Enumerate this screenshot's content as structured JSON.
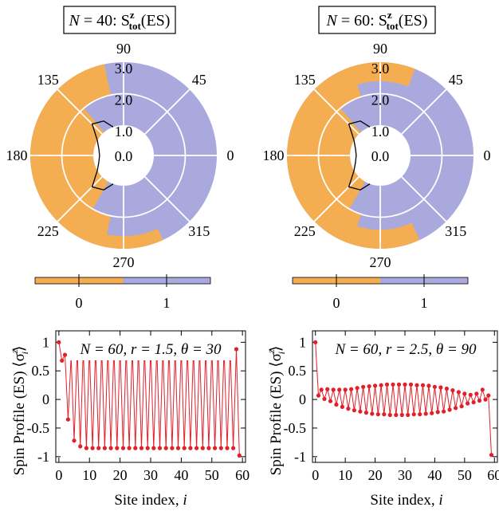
{
  "colors": {
    "phase0": "#f4ad50",
    "phase1": "#a9a9de",
    "curve": "#000000",
    "series": "#e1202a"
  },
  "polar_panels": [
    {
      "title_N": "40",
      "title_var": "N",
      "title_S": "S",
      "title_sup": "z",
      "title_sub": "tot",
      "title_tail": "(ES)",
      "radial_ticks": [
        "0.0",
        "1.0",
        "2.0",
        "3.0"
      ],
      "angle_labels": [
        "0",
        "45",
        "90",
        "135",
        "180",
        "225",
        "270",
        "315"
      ],
      "colorbar_ticks": [
        "0",
        "1"
      ]
    },
    {
      "title_N": "60",
      "title_var": "N",
      "title_S": "S",
      "title_sup": "z",
      "title_sub": "tot",
      "title_tail": "(ES)",
      "radial_ticks": [
        "0.0",
        "1.0",
        "2.0",
        "3.0"
      ],
      "angle_labels": [
        "0",
        "45",
        "90",
        "135",
        "180",
        "225",
        "270",
        "315"
      ],
      "colorbar_ticks": [
        "0",
        "1"
      ]
    }
  ],
  "line_panels": [
    {
      "ylabel": "Spin Profile (ES)",
      "ylabel_bracket": "⟨σ",
      "ylabel_sup": "z",
      "ylabel_sub": "i",
      "ylabel_close": "⟩",
      "xlabel": "Site index, ",
      "xlabel_var": "i",
      "legend": {
        "N": "N = 60",
        "r": "r = 1.5",
        "theta": "θ = 30"
      },
      "xticks": [
        "0",
        "10",
        "20",
        "30",
        "40",
        "50",
        "60"
      ],
      "yticks": [
        "1",
        "0.5",
        "0",
        "-0.5",
        "-1"
      ]
    },
    {
      "ylabel": "Spin Profile (ES)",
      "ylabel_bracket": "⟨σ",
      "ylabel_sup": "z",
      "ylabel_sub": "i",
      "ylabel_close": "⟩",
      "xlabel": "Site index, ",
      "xlabel_var": "i",
      "legend": {
        "N": "N = 60",
        "r": "r = 2.5",
        "theta": "θ = 90"
      },
      "xticks": [
        "0",
        "10",
        "20",
        "30",
        "40",
        "50",
        "60"
      ],
      "yticks": [
        "1",
        "0.5",
        "0",
        "-0.5",
        "-1"
      ]
    }
  ],
  "chart_data": [
    {
      "type": "heatmap",
      "title": "N = 40: S^z_tot(ES)",
      "coordinates": "polar",
      "r_range": [
        1.0,
        3.0
      ],
      "inner_hole_radius": 1.0,
      "radial_ticks": [
        0.0,
        1.0,
        2.0,
        3.0
      ],
      "angle_ticks_deg": [
        0,
        45,
        90,
        135,
        180,
        225,
        270,
        315
      ],
      "values_legend": [
        0,
        1
      ],
      "regions_value0": [
        {
          "r": [
            1.0,
            3.0
          ],
          "theta_deg": [
            130,
            240
          ]
        },
        {
          "r": [
            2.0,
            3.0
          ],
          "theta_deg": [
            102,
            130
          ]
        },
        {
          "r": [
            2.0,
            3.0
          ],
          "theta_deg": [
            240,
            258
          ]
        },
        {
          "r": [
            2.6,
            3.0
          ],
          "theta_deg": [
            245,
            295
          ]
        }
      ],
      "boundary_curve_r_at_angle": [
        [
          110,
          1.0
        ],
        [
          120,
          1.3
        ],
        [
          135,
          1.45
        ],
        [
          150,
          1.0
        ],
        [
          165,
          0.85
        ],
        [
          180,
          0.8
        ],
        [
          195,
          0.85
        ],
        [
          210,
          1.0
        ],
        [
          225,
          1.45
        ],
        [
          240,
          1.3
        ],
        [
          250,
          1.0
        ]
      ]
    },
    {
      "type": "heatmap",
      "title": "N = 60: S^z_tot(ES)",
      "coordinates": "polar",
      "r_range": [
        1.0,
        3.0
      ],
      "inner_hole_radius": 1.0,
      "radial_ticks": [
        0.0,
        1.0,
        2.0,
        3.0
      ],
      "angle_ticks_deg": [
        0,
        45,
        90,
        135,
        180,
        225,
        270,
        315
      ],
      "values_legend": [
        0,
        1
      ],
      "regions_value0": [
        {
          "r": [
            1.0,
            3.0
          ],
          "theta_deg": [
            130,
            240
          ]
        },
        {
          "r": [
            2.0,
            3.0
          ],
          "theta_deg": [
            108,
            130
          ]
        },
        {
          "r": [
            2.0,
            3.0
          ],
          "theta_deg": [
            240,
            252
          ]
        },
        {
          "r": [
            2.4,
            3.0
          ],
          "theta_deg": [
            68,
            112
          ]
        },
        {
          "r": [
            2.4,
            3.0
          ],
          "theta_deg": [
            250,
            295
          ]
        }
      ],
      "boundary_curve_r_at_angle": [
        [
          110,
          1.0
        ],
        [
          120,
          1.3
        ],
        [
          135,
          1.45
        ],
        [
          150,
          1.0
        ],
        [
          165,
          0.85
        ],
        [
          180,
          0.8
        ],
        [
          195,
          0.85
        ],
        [
          210,
          1.0
        ],
        [
          225,
          1.45
        ],
        [
          240,
          1.3
        ],
        [
          250,
          1.0
        ]
      ]
    },
    {
      "type": "line",
      "title": "N = 60, r = 1.5, θ = 30",
      "xlabel": "Site index, i",
      "ylabel": "Spin Profile (ES) ⟨σ^z_i⟩",
      "xlim": [
        -1,
        61
      ],
      "ylim": [
        -1.1,
        1.2
      ],
      "series": [
        {
          "x": [
            0,
            1,
            2,
            3,
            4,
            5,
            6,
            7,
            8,
            9,
            10,
            11,
            12,
            13,
            14,
            15,
            16,
            17,
            18,
            19,
            20,
            21,
            22,
            23,
            24,
            25,
            26,
            27,
            28,
            29,
            30,
            31,
            32,
            33,
            34,
            35,
            36,
            37,
            38,
            39,
            40,
            41,
            42,
            43,
            44,
            45,
            46,
            47,
            48,
            49,
            50,
            51,
            52,
            53,
            54,
            55,
            56,
            57,
            58,
            59
          ],
          "values": [
            1.0,
            0.68,
            0.78,
            -0.35,
            0.75,
            -0.72,
            0.88,
            -0.82,
            0.9,
            -0.85,
            0.9,
            -0.85,
            0.9,
            -0.85,
            0.9,
            -0.85,
            0.9,
            -0.85,
            0.9,
            -0.85,
            0.9,
            -0.85,
            0.9,
            -0.85,
            0.9,
            -0.85,
            0.9,
            -0.85,
            0.9,
            -0.85,
            0.9,
            -0.85,
            0.9,
            -0.85,
            0.9,
            -0.85,
            0.9,
            -0.85,
            0.9,
            -0.85,
            0.9,
            -0.85,
            0.9,
            -0.85,
            0.9,
            -0.85,
            0.9,
            -0.85,
            0.9,
            -0.85,
            0.9,
            -0.85,
            0.9,
            -0.85,
            0.9,
            -0.85,
            0.9,
            -0.85,
            0.88,
            -0.98
          ]
        }
      ]
    },
    {
      "type": "line",
      "title": "N = 60, r = 2.5, θ = 90",
      "xlabel": "Site index, i",
      "ylabel": "Spin Profile (ES) ⟨σ^z_i⟩",
      "xlim": [
        -1,
        61
      ],
      "ylim": [
        -1.1,
        1.2
      ],
      "series": [
        {
          "x": [
            0,
            1,
            2,
            3,
            4,
            5,
            6,
            7,
            8,
            9,
            10,
            11,
            12,
            13,
            14,
            15,
            16,
            17,
            18,
            19,
            20,
            21,
            22,
            23,
            24,
            25,
            26,
            27,
            28,
            29,
            30,
            31,
            32,
            33,
            34,
            35,
            36,
            37,
            38,
            39,
            40,
            41,
            42,
            43,
            44,
            45,
            46,
            47,
            48,
            49,
            50,
            51,
            52,
            53,
            54,
            55,
            56,
            57,
            58,
            59
          ],
          "values": [
            1.0,
            0.07,
            0.17,
            0.01,
            0.18,
            -0.03,
            0.17,
            -0.09,
            0.17,
            -0.13,
            0.17,
            -0.16,
            0.18,
            -0.19,
            0.2,
            -0.21,
            0.22,
            -0.23,
            0.23,
            -0.25,
            0.24,
            -0.26,
            0.25,
            -0.26,
            0.26,
            -0.27,
            0.26,
            -0.27,
            0.26,
            -0.27,
            0.26,
            -0.27,
            0.26,
            -0.26,
            0.25,
            -0.26,
            0.25,
            -0.25,
            0.24,
            -0.24,
            0.22,
            -0.22,
            0.21,
            -0.21,
            0.19,
            -0.18,
            0.16,
            -0.15,
            0.13,
            -0.12,
            0.1,
            -0.07,
            0.08,
            -0.05,
            0.1,
            -0.02,
            0.17,
            0.0,
            0.07,
            -0.97
          ]
        }
      ]
    }
  ]
}
